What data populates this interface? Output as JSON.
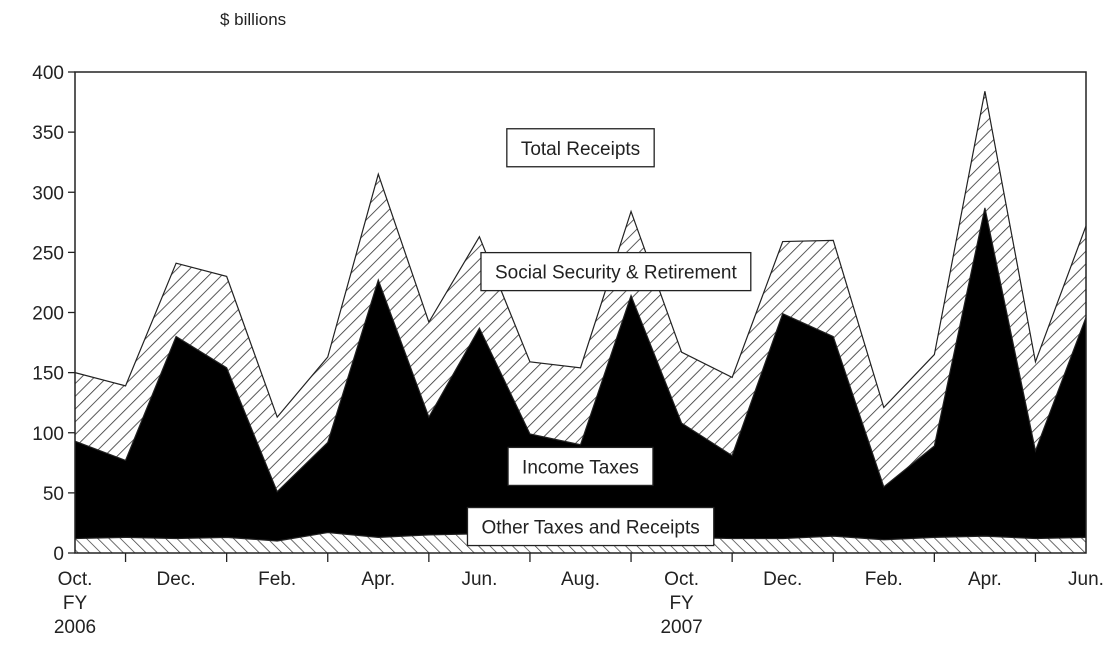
{
  "chart_data": {
    "type": "area",
    "stacked": true,
    "units_label": "$ billions",
    "ylim": [
      0,
      400
    ],
    "yticks": [
      "0",
      "50",
      "100",
      "150",
      "200",
      "250",
      "300",
      "350",
      "400"
    ],
    "x": [
      "Oct 2006",
      "Nov 2006",
      "Dec 2006",
      "Jan 2007",
      "Feb 2007",
      "Mar 2007",
      "Apr 2007",
      "May 2007",
      "Jun 2007",
      "Jul 2007",
      "Aug 2007",
      "Sep 2007",
      "Oct 2007",
      "Nov 2007",
      "Dec 2007",
      "Jan 2008",
      "Feb 2008",
      "Mar 2008",
      "Apr 2008",
      "May 2008",
      "Jun 2008"
    ],
    "x_tick_labels": [
      {
        "index": 0,
        "lines": [
          "Oct.",
          "FY",
          "2006"
        ]
      },
      {
        "index": 2,
        "lines": [
          "Dec."
        ]
      },
      {
        "index": 4,
        "lines": [
          "Feb."
        ]
      },
      {
        "index": 6,
        "lines": [
          "Apr."
        ]
      },
      {
        "index": 8,
        "lines": [
          "Jun."
        ]
      },
      {
        "index": 10,
        "lines": [
          "Aug."
        ]
      },
      {
        "index": 12,
        "lines": [
          "Oct.",
          "FY",
          "2007"
        ]
      },
      {
        "index": 14,
        "lines": [
          "Dec."
        ]
      },
      {
        "index": 16,
        "lines": [
          "Feb."
        ]
      },
      {
        "index": 18,
        "lines": [
          "Apr."
        ]
      },
      {
        "index": 20,
        "lines": [
          "Jun."
        ]
      }
    ],
    "series": [
      {
        "name": "Other Taxes and Receipts",
        "pattern": "crosshatch",
        "cumulative": [
          12,
          13,
          12,
          13,
          10,
          17,
          13,
          15,
          16,
          13,
          13,
          14,
          13,
          12,
          12,
          14,
          11,
          13,
          14,
          12,
          13
        ]
      },
      {
        "name": "Income Taxes",
        "pattern": "solid",
        "cumulative": [
          93,
          77,
          180,
          154,
          51,
          92,
          227,
          113,
          187,
          99,
          90,
          214,
          108,
          81,
          199,
          180,
          55,
          89,
          287,
          85,
          196
        ]
      },
      {
        "name": "Social Security & Retirement",
        "pattern": "diagonal",
        "cumulative": [
          150,
          139,
          241,
          230,
          113,
          163,
          315,
          192,
          263,
          159,
          154,
          284,
          167,
          146,
          259,
          260,
          121,
          165,
          384,
          159,
          272
        ]
      }
    ],
    "annotations": [
      {
        "text": "Total Receipts",
        "value_x": 10.0,
        "value_y": 337
      },
      {
        "text": "Social Security & Retirement",
        "value_x": 10.7,
        "value_y": 234
      },
      {
        "text": "Income Taxes",
        "value_x": 10.0,
        "value_y": 72
      },
      {
        "text": "Other Taxes and Receipts",
        "value_x": 10.2,
        "value_y": 22
      }
    ],
    "colors": {
      "income_fill": "#000000",
      "line": "#222222",
      "hatch": "#333333"
    }
  }
}
